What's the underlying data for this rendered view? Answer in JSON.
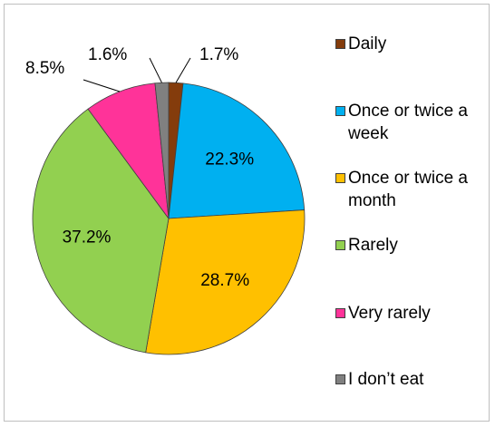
{
  "chart_data": {
    "type": "pie",
    "categories": [
      "Daily",
      "Once or twice a week",
      "Once or twice a month",
      "Rarely",
      "Very rarely",
      "I don’t eat"
    ],
    "values": [
      1.7,
      22.3,
      28.7,
      37.2,
      8.5,
      1.6
    ],
    "value_labels": [
      "1.7%",
      "22.3%",
      "28.7%",
      "37.2%",
      "8.5%",
      "1.6%"
    ],
    "colors": [
      "#843c0c",
      "#00b0f0",
      "#ffc000",
      "#92d050",
      "#ff3399",
      "#808080"
    ],
    "legend": "right"
  }
}
